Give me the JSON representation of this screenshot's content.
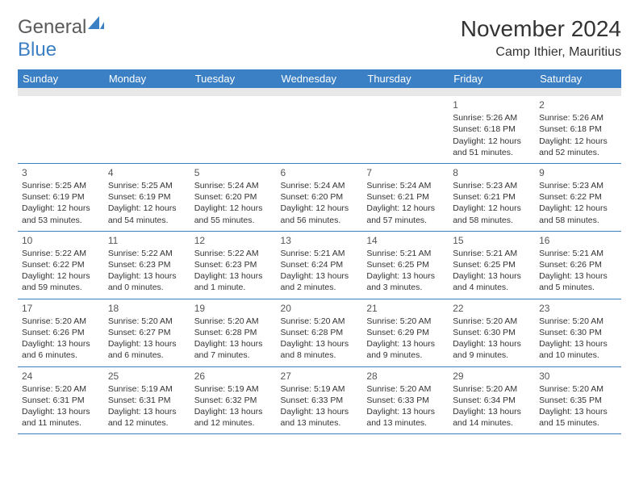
{
  "brand": {
    "part1": "General",
    "part2": "Blue",
    "logo_color": "#3b7fc4"
  },
  "title": {
    "month": "November 2024",
    "location": "Camp Ithier, Mauritius"
  },
  "colors": {
    "header_bg": "#3b7fc4",
    "header_text": "#ffffff",
    "spacer_bg": "#e8e8e8",
    "border": "#3b7fc4",
    "body_text": "#333333"
  },
  "dayHeaders": [
    "Sunday",
    "Monday",
    "Tuesday",
    "Wednesday",
    "Thursday",
    "Friday",
    "Saturday"
  ],
  "weeks": [
    [
      null,
      null,
      null,
      null,
      null,
      {
        "d": "1",
        "sr": "Sunrise: 5:26 AM",
        "ss": "Sunset: 6:18 PM",
        "dl1": "Daylight: 12 hours",
        "dl2": "and 51 minutes."
      },
      {
        "d": "2",
        "sr": "Sunrise: 5:26 AM",
        "ss": "Sunset: 6:18 PM",
        "dl1": "Daylight: 12 hours",
        "dl2": "and 52 minutes."
      }
    ],
    [
      {
        "d": "3",
        "sr": "Sunrise: 5:25 AM",
        "ss": "Sunset: 6:19 PM",
        "dl1": "Daylight: 12 hours",
        "dl2": "and 53 minutes."
      },
      {
        "d": "4",
        "sr": "Sunrise: 5:25 AM",
        "ss": "Sunset: 6:19 PM",
        "dl1": "Daylight: 12 hours",
        "dl2": "and 54 minutes."
      },
      {
        "d": "5",
        "sr": "Sunrise: 5:24 AM",
        "ss": "Sunset: 6:20 PM",
        "dl1": "Daylight: 12 hours",
        "dl2": "and 55 minutes."
      },
      {
        "d": "6",
        "sr": "Sunrise: 5:24 AM",
        "ss": "Sunset: 6:20 PM",
        "dl1": "Daylight: 12 hours",
        "dl2": "and 56 minutes."
      },
      {
        "d": "7",
        "sr": "Sunrise: 5:24 AM",
        "ss": "Sunset: 6:21 PM",
        "dl1": "Daylight: 12 hours",
        "dl2": "and 57 minutes."
      },
      {
        "d": "8",
        "sr": "Sunrise: 5:23 AM",
        "ss": "Sunset: 6:21 PM",
        "dl1": "Daylight: 12 hours",
        "dl2": "and 58 minutes."
      },
      {
        "d": "9",
        "sr": "Sunrise: 5:23 AM",
        "ss": "Sunset: 6:22 PM",
        "dl1": "Daylight: 12 hours",
        "dl2": "and 58 minutes."
      }
    ],
    [
      {
        "d": "10",
        "sr": "Sunrise: 5:22 AM",
        "ss": "Sunset: 6:22 PM",
        "dl1": "Daylight: 12 hours",
        "dl2": "and 59 minutes."
      },
      {
        "d": "11",
        "sr": "Sunrise: 5:22 AM",
        "ss": "Sunset: 6:23 PM",
        "dl1": "Daylight: 13 hours",
        "dl2": "and 0 minutes."
      },
      {
        "d": "12",
        "sr": "Sunrise: 5:22 AM",
        "ss": "Sunset: 6:23 PM",
        "dl1": "Daylight: 13 hours",
        "dl2": "and 1 minute."
      },
      {
        "d": "13",
        "sr": "Sunrise: 5:21 AM",
        "ss": "Sunset: 6:24 PM",
        "dl1": "Daylight: 13 hours",
        "dl2": "and 2 minutes."
      },
      {
        "d": "14",
        "sr": "Sunrise: 5:21 AM",
        "ss": "Sunset: 6:25 PM",
        "dl1": "Daylight: 13 hours",
        "dl2": "and 3 minutes."
      },
      {
        "d": "15",
        "sr": "Sunrise: 5:21 AM",
        "ss": "Sunset: 6:25 PM",
        "dl1": "Daylight: 13 hours",
        "dl2": "and 4 minutes."
      },
      {
        "d": "16",
        "sr": "Sunrise: 5:21 AM",
        "ss": "Sunset: 6:26 PM",
        "dl1": "Daylight: 13 hours",
        "dl2": "and 5 minutes."
      }
    ],
    [
      {
        "d": "17",
        "sr": "Sunrise: 5:20 AM",
        "ss": "Sunset: 6:26 PM",
        "dl1": "Daylight: 13 hours",
        "dl2": "and 6 minutes."
      },
      {
        "d": "18",
        "sr": "Sunrise: 5:20 AM",
        "ss": "Sunset: 6:27 PM",
        "dl1": "Daylight: 13 hours",
        "dl2": "and 6 minutes."
      },
      {
        "d": "19",
        "sr": "Sunrise: 5:20 AM",
        "ss": "Sunset: 6:28 PM",
        "dl1": "Daylight: 13 hours",
        "dl2": "and 7 minutes."
      },
      {
        "d": "20",
        "sr": "Sunrise: 5:20 AM",
        "ss": "Sunset: 6:28 PM",
        "dl1": "Daylight: 13 hours",
        "dl2": "and 8 minutes."
      },
      {
        "d": "21",
        "sr": "Sunrise: 5:20 AM",
        "ss": "Sunset: 6:29 PM",
        "dl1": "Daylight: 13 hours",
        "dl2": "and 9 minutes."
      },
      {
        "d": "22",
        "sr": "Sunrise: 5:20 AM",
        "ss": "Sunset: 6:30 PM",
        "dl1": "Daylight: 13 hours",
        "dl2": "and 9 minutes."
      },
      {
        "d": "23",
        "sr": "Sunrise: 5:20 AM",
        "ss": "Sunset: 6:30 PM",
        "dl1": "Daylight: 13 hours",
        "dl2": "and 10 minutes."
      }
    ],
    [
      {
        "d": "24",
        "sr": "Sunrise: 5:20 AM",
        "ss": "Sunset: 6:31 PM",
        "dl1": "Daylight: 13 hours",
        "dl2": "and 11 minutes."
      },
      {
        "d": "25",
        "sr": "Sunrise: 5:19 AM",
        "ss": "Sunset: 6:31 PM",
        "dl1": "Daylight: 13 hours",
        "dl2": "and 12 minutes."
      },
      {
        "d": "26",
        "sr": "Sunrise: 5:19 AM",
        "ss": "Sunset: 6:32 PM",
        "dl1": "Daylight: 13 hours",
        "dl2": "and 12 minutes."
      },
      {
        "d": "27",
        "sr": "Sunrise: 5:19 AM",
        "ss": "Sunset: 6:33 PM",
        "dl1": "Daylight: 13 hours",
        "dl2": "and 13 minutes."
      },
      {
        "d": "28",
        "sr": "Sunrise: 5:20 AM",
        "ss": "Sunset: 6:33 PM",
        "dl1": "Daylight: 13 hours",
        "dl2": "and 13 minutes."
      },
      {
        "d": "29",
        "sr": "Sunrise: 5:20 AM",
        "ss": "Sunset: 6:34 PM",
        "dl1": "Daylight: 13 hours",
        "dl2": "and 14 minutes."
      },
      {
        "d": "30",
        "sr": "Sunrise: 5:20 AM",
        "ss": "Sunset: 6:35 PM",
        "dl1": "Daylight: 13 hours",
        "dl2": "and 15 minutes."
      }
    ]
  ]
}
